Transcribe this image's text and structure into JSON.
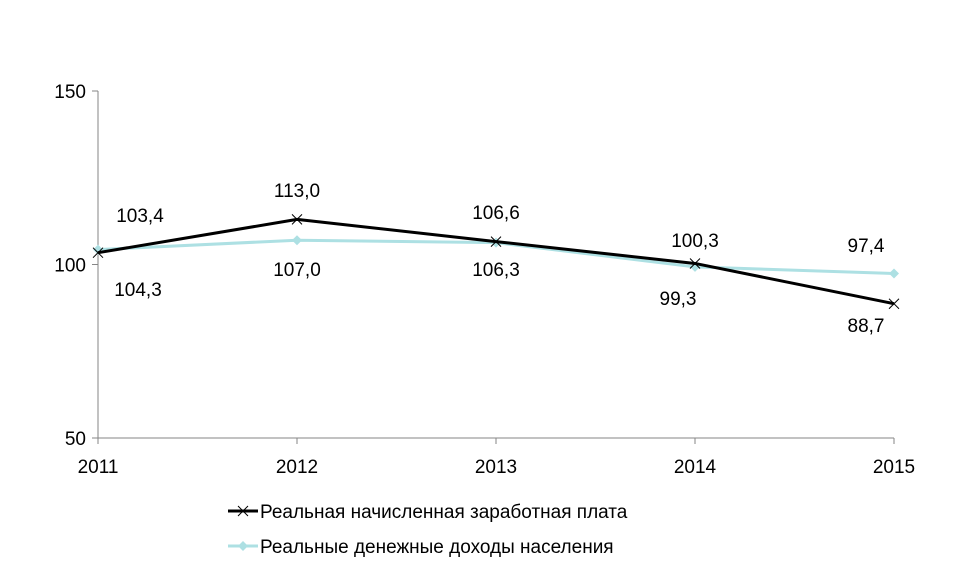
{
  "chart_data": {
    "type": "line",
    "categories": [
      "2011",
      "2012",
      "2013",
      "2014",
      "2015"
    ],
    "ylim": [
      50,
      150
    ],
    "yticks": [
      "50",
      "100",
      "150"
    ],
    "grid": false,
    "legend_placement": "bottom",
    "series": [
      {
        "name": "Реальная начисленная заработная плата",
        "values": [
          103.4,
          113.0,
          106.6,
          100.3,
          88.7
        ],
        "labels": [
          "103,4",
          "113,0",
          "106,6",
          "100,3",
          "88,7"
        ],
        "color": "#000000",
        "marker": "x"
      },
      {
        "name": "Реальные денежные доходы населения",
        "values": [
          104.3,
          107.0,
          106.3,
          99.3,
          97.4
        ],
        "labels": [
          "104,3",
          "107,0",
          "106,3",
          "99,3",
          "97,4"
        ],
        "color": "#ade0e3",
        "marker": "diamond"
      }
    ]
  }
}
